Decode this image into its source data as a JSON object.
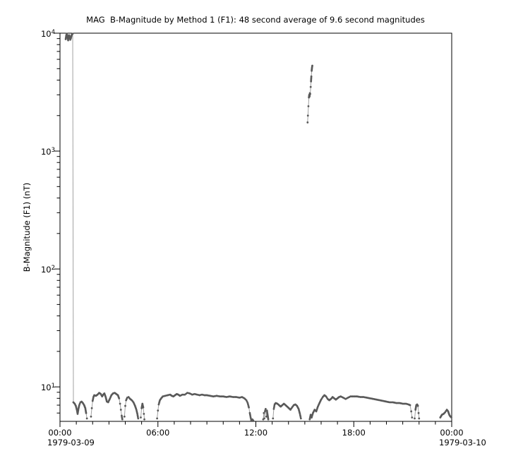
{
  "window": {
    "background": "#ffffff"
  },
  "chart_data": {
    "type": "scatter",
    "title": "MAG  B-Magnitude by Method 1 (F1): 48 second average of 9.6 second magnitudes",
    "ylabel": "B-Magnitude (F1) (nT)",
    "x_axis": {
      "unit": "hours",
      "range_hours": [
        0,
        24
      ],
      "major_tick_hours": [
        0,
        6,
        12,
        18,
        24
      ],
      "major_tick_labels": [
        "00:00",
        "06:00",
        "12:00",
        "18:00",
        "00:00"
      ],
      "minor_tick_interval_hours": 1,
      "start_date_label": "1979-03-09",
      "end_date_label": "1979-03-10",
      "grid": false
    },
    "y_axis": {
      "scale": "log",
      "range": [
        5.1,
        10000
      ],
      "decades": [
        {
          "base": "10",
          "exp": "1",
          "value": 10
        },
        {
          "base": "10",
          "exp": "2",
          "value": 100
        },
        {
          "base": "10",
          "exp": "3",
          "value": 1000
        },
        {
          "base": "10",
          "exp": "4",
          "value": 10000
        }
      ],
      "grid": false
    },
    "style": {
      "dot_color": "#595959",
      "line_color": "#a2a2a2",
      "axis_color": "#000000",
      "dot_radius": 1.4
    },
    "segments": [
      [
        [
          0.35,
          8900
        ],
        [
          0.38,
          9500
        ],
        [
          0.41,
          9900
        ],
        [
          0.44,
          9600
        ],
        [
          0.47,
          9100
        ],
        [
          0.5,
          8700
        ],
        [
          0.53,
          9200
        ],
        [
          0.56,
          9600
        ],
        [
          0.6,
          9300
        ],
        [
          0.63,
          8800
        ],
        [
          0.67,
          9100
        ],
        [
          0.7,
          9500
        ],
        [
          0.74,
          9800
        ],
        [
          0.78,
          9900
        ],
        [
          0.82,
          7.4
        ],
        [
          0.9,
          7.2
        ],
        [
          0.97,
          6.9
        ],
        [
          1.03,
          6.4
        ],
        [
          1.08,
          5.9
        ],
        [
          1.13,
          6.5
        ],
        [
          1.18,
          7.0
        ],
        [
          1.25,
          7.4
        ],
        [
          1.32,
          7.5
        ],
        [
          1.4,
          7.3
        ],
        [
          1.48,
          7.0
        ],
        [
          1.55,
          6.6
        ],
        [
          1.6,
          6.0
        ],
        [
          1.65,
          5.4
        ]
      ],
      [
        [
          1.9,
          5.6
        ],
        [
          1.95,
          6.6
        ],
        [
          2.0,
          7.6
        ],
        [
          2.05,
          8.2
        ],
        [
          2.1,
          8.5
        ],
        [
          2.2,
          8.4
        ],
        [
          2.3,
          8.6
        ],
        [
          2.4,
          8.9
        ],
        [
          2.5,
          8.7
        ],
        [
          2.58,
          8.3
        ],
        [
          2.65,
          8.6
        ],
        [
          2.72,
          8.8
        ],
        [
          2.8,
          8.2
        ],
        [
          2.87,
          7.5
        ],
        [
          2.95,
          7.4
        ],
        [
          3.05,
          7.9
        ],
        [
          3.15,
          8.5
        ],
        [
          3.25,
          8.8
        ],
        [
          3.35,
          8.9
        ],
        [
          3.45,
          8.7
        ],
        [
          3.55,
          8.5
        ],
        [
          3.62,
          8.0
        ],
        [
          3.68,
          7.2
        ],
        [
          3.73,
          6.4
        ],
        [
          3.78,
          5.7
        ],
        [
          3.82,
          5.3
        ]
      ],
      [
        [
          3.95,
          5.6
        ],
        [
          4.0,
          6.9
        ],
        [
          4.05,
          7.7
        ],
        [
          4.12,
          8.1
        ],
        [
          4.2,
          8.2
        ],
        [
          4.3,
          7.9
        ],
        [
          4.4,
          7.7
        ],
        [
          4.5,
          7.4
        ],
        [
          4.6,
          6.9
        ],
        [
          4.68,
          6.4
        ],
        [
          4.74,
          5.9
        ],
        [
          4.79,
          5.4
        ]
      ],
      [
        [
          4.95,
          5.5
        ],
        [
          5.0,
          6.6
        ],
        [
          5.05,
          7.2
        ],
        [
          5.1,
          6.7
        ],
        [
          5.14,
          5.9
        ],
        [
          5.17,
          5.3
        ]
      ],
      [
        [
          5.95,
          5.4
        ],
        [
          6.0,
          6.3
        ],
        [
          6.05,
          7.1
        ],
        [
          6.12,
          7.7
        ],
        [
          6.2,
          8.0
        ],
        [
          6.3,
          8.3
        ],
        [
          6.45,
          8.4
        ],
        [
          6.6,
          8.5
        ],
        [
          6.75,
          8.6
        ],
        [
          6.85,
          8.4
        ],
        [
          6.95,
          8.3
        ],
        [
          7.05,
          8.5
        ],
        [
          7.15,
          8.7
        ],
        [
          7.25,
          8.6
        ],
        [
          7.35,
          8.4
        ],
        [
          7.5,
          8.6
        ],
        [
          7.65,
          8.6
        ],
        [
          7.8,
          8.9
        ],
        [
          7.95,
          8.8
        ],
        [
          8.1,
          8.6
        ],
        [
          8.25,
          8.7
        ],
        [
          8.4,
          8.6
        ],
        [
          8.55,
          8.5
        ],
        [
          8.7,
          8.6
        ],
        [
          8.85,
          8.5
        ],
        [
          9.0,
          8.5
        ],
        [
          9.2,
          8.4
        ],
        [
          9.4,
          8.3
        ],
        [
          9.6,
          8.4
        ],
        [
          9.8,
          8.3
        ],
        [
          10.0,
          8.3
        ],
        [
          10.2,
          8.2
        ],
        [
          10.4,
          8.3
        ],
        [
          10.6,
          8.2
        ],
        [
          10.8,
          8.2
        ],
        [
          11.0,
          8.1
        ],
        [
          11.15,
          8.2
        ],
        [
          11.3,
          8.0
        ],
        [
          11.42,
          7.7
        ],
        [
          11.5,
          7.3
        ],
        [
          11.57,
          6.7
        ],
        [
          11.63,
          6.0
        ],
        [
          11.68,
          5.5
        ],
        [
          11.72,
          5.2
        ]
      ],
      [
        [
          11.78,
          5.3
        ],
        [
          11.84,
          5.2
        ]
      ],
      [
        [
          12.45,
          5.3
        ],
        [
          12.49,
          6.0
        ],
        [
          12.52,
          5.4
        ],
        [
          12.56,
          6.2
        ],
        [
          12.6,
          6.5
        ],
        [
          12.64,
          5.6
        ],
        [
          12.68,
          6.3
        ],
        [
          12.72,
          5.8
        ],
        [
          12.76,
          5.3
        ]
      ],
      [
        [
          13.05,
          5.4
        ],
        [
          13.1,
          6.5
        ],
        [
          13.15,
          7.1
        ],
        [
          13.22,
          7.3
        ],
        [
          13.32,
          7.2
        ],
        [
          13.42,
          7.0
        ],
        [
          13.52,
          6.8
        ],
        [
          13.62,
          7.0
        ],
        [
          13.72,
          7.2
        ],
        [
          13.82,
          7.0
        ],
        [
          13.92,
          6.8
        ],
        [
          14.02,
          6.6
        ],
        [
          14.12,
          6.4
        ],
        [
          14.22,
          6.7
        ],
        [
          14.32,
          7.0
        ],
        [
          14.42,
          7.1
        ],
        [
          14.52,
          6.9
        ],
        [
          14.62,
          6.5
        ],
        [
          14.7,
          5.9
        ],
        [
          14.76,
          5.4
        ]
      ],
      [
        [
          15.17,
          1750
        ],
        [
          15.19,
          2000
        ],
        [
          15.22,
          2400
        ],
        [
          15.25,
          2850
        ],
        [
          15.27,
          3000
        ],
        [
          15.29,
          2900
        ],
        [
          15.31,
          3100
        ],
        [
          15.33,
          3050
        ],
        [
          15.36,
          3500
        ],
        [
          15.38,
          3900
        ],
        [
          15.4,
          4300
        ],
        [
          15.42,
          4800
        ],
        [
          15.44,
          5100
        ],
        [
          15.46,
          5300
        ]
      ],
      [
        [
          15.3,
          5.3
        ],
        [
          15.36,
          5.8
        ],
        [
          15.42,
          5.5
        ],
        [
          15.5,
          6.0
        ],
        [
          15.6,
          6.4
        ],
        [
          15.7,
          6.2
        ],
        [
          15.8,
          6.8
        ],
        [
          15.9,
          7.3
        ],
        [
          16.0,
          7.8
        ],
        [
          16.1,
          8.2
        ],
        [
          16.2,
          8.5
        ],
        [
          16.3,
          8.3
        ],
        [
          16.4,
          7.9
        ],
        [
          16.5,
          7.7
        ],
        [
          16.6,
          7.9
        ],
        [
          16.7,
          8.2
        ],
        [
          16.8,
          8.0
        ],
        [
          16.9,
          7.8
        ],
        [
          17.0,
          8.0
        ],
        [
          17.1,
          8.2
        ],
        [
          17.2,
          8.3
        ],
        [
          17.35,
          8.1
        ],
        [
          17.5,
          7.9
        ],
        [
          17.65,
          8.1
        ],
        [
          17.8,
          8.3
        ],
        [
          18.0,
          8.3
        ],
        [
          18.2,
          8.3
        ],
        [
          18.4,
          8.2
        ],
        [
          18.6,
          8.2
        ],
        [
          18.8,
          8.1
        ],
        [
          19.0,
          8.0
        ],
        [
          19.2,
          7.9
        ],
        [
          19.4,
          7.8
        ],
        [
          19.6,
          7.7
        ],
        [
          19.8,
          7.6
        ],
        [
          20.0,
          7.5
        ],
        [
          20.2,
          7.4
        ],
        [
          20.4,
          7.4
        ],
        [
          20.6,
          7.3
        ],
        [
          20.8,
          7.3
        ],
        [
          21.0,
          7.2
        ],
        [
          21.2,
          7.2
        ],
        [
          21.35,
          7.1
        ],
        [
          21.45,
          7.0
        ],
        [
          21.52,
          6.2
        ],
        [
          21.57,
          5.5
        ]
      ],
      [
        [
          21.73,
          5.4
        ],
        [
          21.78,
          6.4
        ],
        [
          21.83,
          7.0
        ],
        [
          21.88,
          7.1
        ],
        [
          21.93,
          6.9
        ],
        [
          21.97,
          6.0
        ],
        [
          22.0,
          5.4
        ]
      ],
      [
        [
          23.3,
          5.5
        ],
        [
          23.4,
          5.8
        ],
        [
          23.5,
          5.9
        ],
        [
          23.6,
          6.1
        ],
        [
          23.7,
          6.4
        ],
        [
          23.78,
          6.2
        ],
        [
          23.85,
          5.8
        ],
        [
          23.92,
          5.6
        ],
        [
          23.98,
          5.5
        ]
      ]
    ]
  }
}
